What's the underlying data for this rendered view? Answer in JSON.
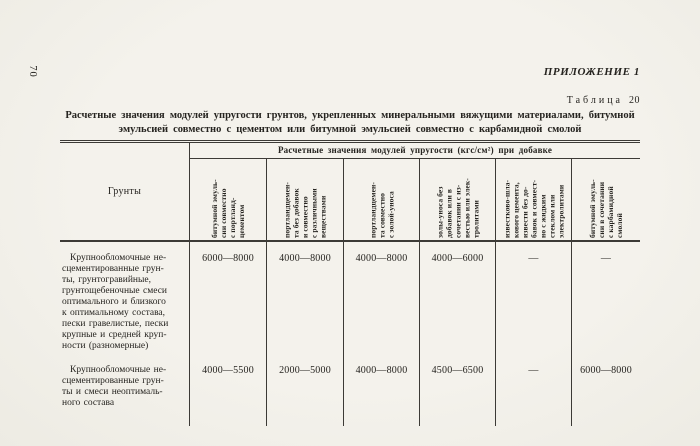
{
  "page": {
    "number": "70",
    "appendix_label": "ПРИЛОЖЕНИЕ 1",
    "table_word": "Таблица",
    "table_number": "20",
    "title": "Расчетные значения модулей упругости грунтов, укрепленных минеральными вяжущими материалами, битумной\nэмульсией совместно с цементом или битумной эмульсией совместно с карбамидной смолой"
  },
  "table": {
    "span_header": "Расчетные значения модулей упругости (кгс/см²) при добавке",
    "row_header": "Грунты",
    "columns": [
      "битумной эмуль-\nсии совместно\nс портланд-\nцементом",
      "портландцемен-\nта без добавок\nи совместно\nс различными\nвеществами",
      "портландцемен-\nта совместно\nс золой-уноса",
      "золы-уноса без\nдобавок или в\nсочетании с из-\nвестью или элек-\nтролитами",
      "известково-шла-\nкового цемента,\nизвести без до-\nбавок и совмест-\nно с жидким\nстеклом или\nэлектролитами",
      "битумной эмуль-\nсии в сочетании\nс карбамидной\nсмолой"
    ],
    "rows": [
      {
        "soil": "Крупнообломочные не-\nсцементированные грун-\nты, грунтогравийные,\nгрунтощебеночные смеси\nоптимального и близкого\nк оптимальному состава,\nпески гравелистые, пески\nкрупные и средней круп-\nности (разномерные)",
        "values": [
          "6000—8000",
          "4000—8000",
          "4000—8000",
          "4000—6000",
          "—",
          "—"
        ]
      },
      {
        "soil": "Крупнообломочные не-\nсцементированные грун-\nты и смеси неоптималь-\nного состава",
        "values": [
          "4000—5500",
          "2000—5000",
          "4000—8000",
          "4500—6500",
          "—",
          "6000—8000"
        ]
      }
    ]
  }
}
